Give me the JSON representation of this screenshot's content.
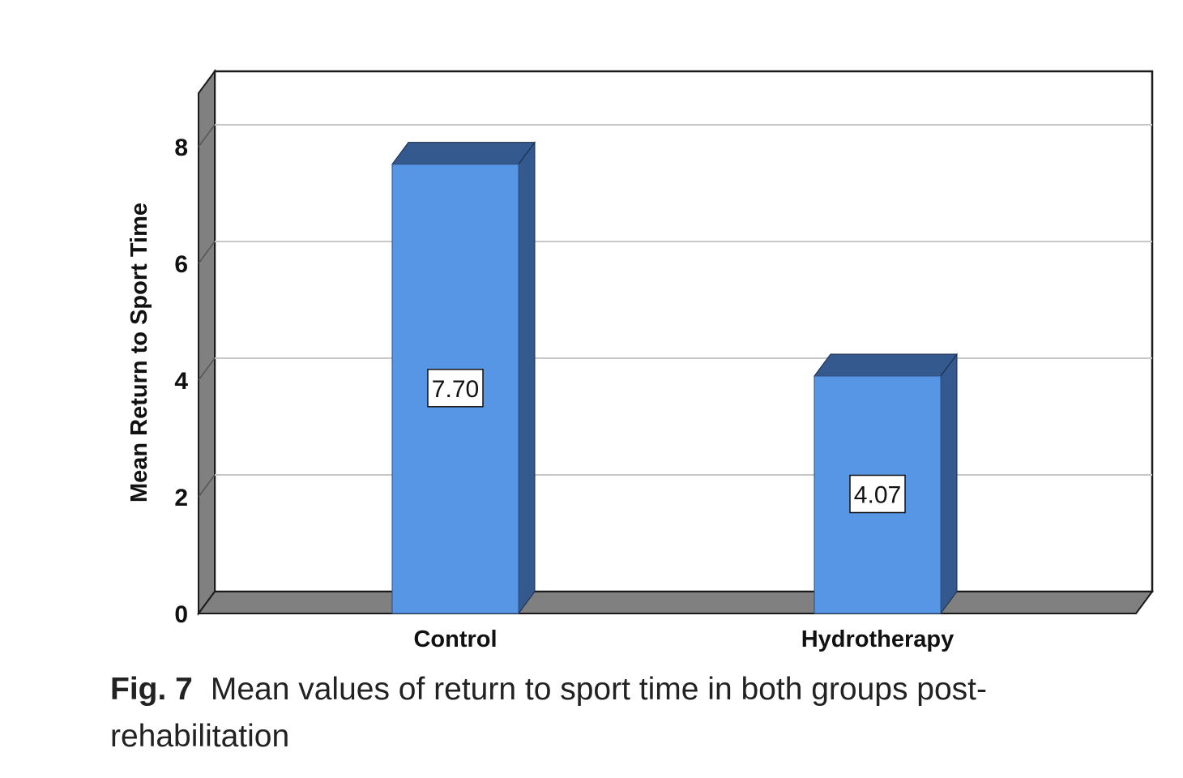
{
  "chart_data": {
    "type": "bar",
    "categories": [
      "Control",
      "Hydrotherapy"
    ],
    "values": [
      7.7,
      4.07
    ],
    "data_labels": [
      "7.70",
      "4.07"
    ],
    "title": "",
    "xlabel": "",
    "ylabel": "Mean Return to Sport Time",
    "ylim": [
      0,
      9
    ],
    "yticks": [
      0,
      2,
      4,
      6,
      8
    ],
    "grid": true,
    "legend": "none",
    "style": "3d",
    "colors": {
      "bar_face": "#5796e5",
      "bar_side": "#34598f",
      "floor": "#808080",
      "grid": "#c8c8c8"
    }
  },
  "caption": {
    "label": "Fig. 7",
    "text": "Mean values of return to sport time in both groups post-rehabilitation"
  }
}
